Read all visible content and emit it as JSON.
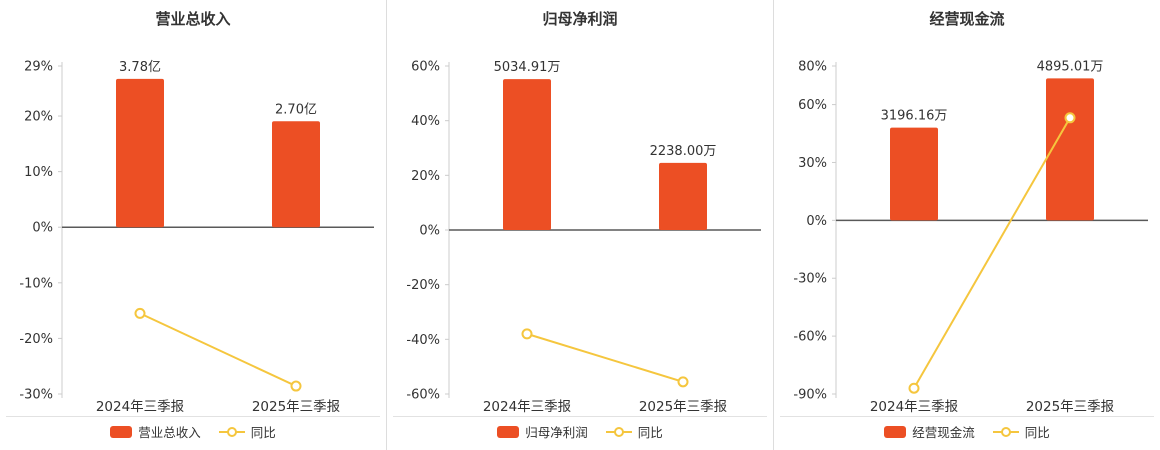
{
  "style": {
    "bar_color": "#ec4f24",
    "line_color": "#f5c63e",
    "marker_fill": "#ffffff",
    "axis_color": "#cccccc",
    "zero_line_color": "#595959",
    "text_color": "#333333",
    "divider_color": "#dddddd"
  },
  "chart_data": [
    {
      "type": "bar+line",
      "title": "营业总收入",
      "categories": [
        "2024年三季报",
        "2025年三季报"
      ],
      "bar_series": {
        "name": "营业总收入",
        "values": [
          3.78,
          2.7
        ],
        "unit": "亿",
        "labels": [
          "3.78亿",
          "2.70亿"
        ]
      },
      "line_series": {
        "name": "同比",
        "values": [
          -15.5,
          -28.57
        ],
        "unit": "%"
      },
      "y_ticks": [
        29,
        20,
        10,
        0,
        -10,
        -20,
        -30
      ],
      "ylim": [
        -30,
        29
      ],
      "grid": false,
      "legend_position": "bottom"
    },
    {
      "type": "bar+line",
      "title": "归母净利润",
      "categories": [
        "2024年三季报",
        "2025年三季报"
      ],
      "bar_series": {
        "name": "归母净利润",
        "values": [
          5034.91,
          2238.0
        ],
        "unit": "万",
        "labels": [
          "5034.91万",
          "2238.00万"
        ]
      },
      "line_series": {
        "name": "同比",
        "values": [
          -38.0,
          -55.55
        ],
        "unit": "%"
      },
      "y_ticks": [
        60,
        40,
        20,
        0,
        -20,
        -40,
        -60
      ],
      "ylim": [
        -60,
        60
      ],
      "grid": false,
      "legend_position": "bottom"
    },
    {
      "type": "bar+line",
      "title": "经营现金流",
      "categories": [
        "2024年三季报",
        "2025年三季报"
      ],
      "bar_series": {
        "name": "经营现金流",
        "values": [
          3196.16,
          4895.01
        ],
        "unit": "万",
        "labels": [
          "3196.16万",
          "4895.01万"
        ]
      },
      "line_series": {
        "name": "同比",
        "values": [
          -87.0,
          53.15
        ],
        "unit": "%"
      },
      "y_ticks": [
        80,
        60,
        30,
        0,
        -30,
        -60,
        -90
      ],
      "ylim": [
        -90,
        80
      ],
      "grid": false,
      "legend_position": "bottom"
    }
  ]
}
